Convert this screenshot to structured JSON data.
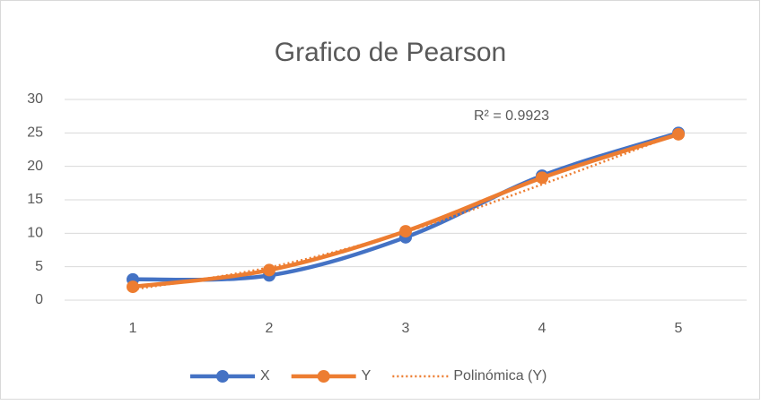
{
  "chart_data": {
    "type": "line",
    "title": "Grafico de Pearson",
    "categories": [
      "1",
      "2",
      "3",
      "4",
      "5"
    ],
    "series": [
      {
        "name": "X",
        "color": "#4472c4",
        "values": [
          3.1,
          3.7,
          9.4,
          18.6,
          25
        ]
      },
      {
        "name": "Y",
        "color": "#ed7d31",
        "values": [
          2.0,
          4.5,
          10.3,
          18.3,
          24.8
        ]
      },
      {
        "name": "Polinómica (Y)",
        "color": "#ed7d31",
        "dotted": true,
        "values": [
          1.6,
          4.9,
          10.2,
          17.3,
          24.9
        ]
      }
    ],
    "annotation": "R² = 0.9923",
    "ylim": [
      0,
      30
    ],
    "yticks": [
      0,
      5,
      10,
      15,
      20,
      25,
      30
    ],
    "grid": true,
    "smooth": true,
    "legend": "bottom"
  }
}
